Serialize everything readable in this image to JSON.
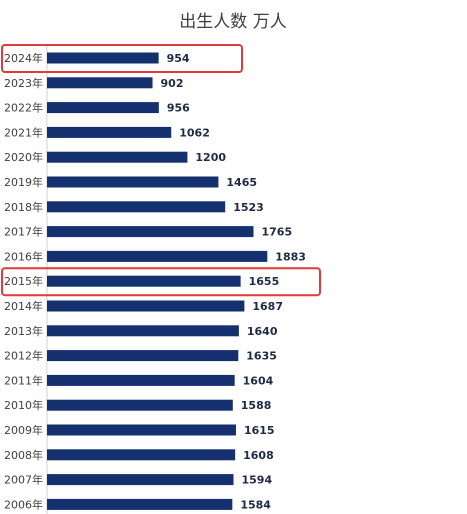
{
  "chart_data": {
    "type": "bar",
    "orientation": "horizontal",
    "title": "出生人数 万人",
    "categories": [
      "2024年",
      "2023年",
      "2022年",
      "2021年",
      "2020年",
      "2019年",
      "2018年",
      "2017年",
      "2016年",
      "2015年",
      "2014年",
      "2013年",
      "2012年",
      "2011年",
      "2010年",
      "2009年",
      "2008年",
      "2007年",
      "2006年"
    ],
    "values": [
      954,
      902,
      956,
      1062,
      1200,
      1465,
      1523,
      1765,
      1883,
      1655,
      1687,
      1640,
      1635,
      1604,
      1588,
      1615,
      1608,
      1594,
      1584
    ],
    "highlighted_categories": [
      "2024年",
      "2015年"
    ],
    "xlabel": "",
    "ylabel": "",
    "grid": false,
    "legend": "none",
    "colors": {
      "bar": "#14306e",
      "highlight": "#e03a3a",
      "value_text": "#1f2a44",
      "label_text": "#404040"
    }
  }
}
